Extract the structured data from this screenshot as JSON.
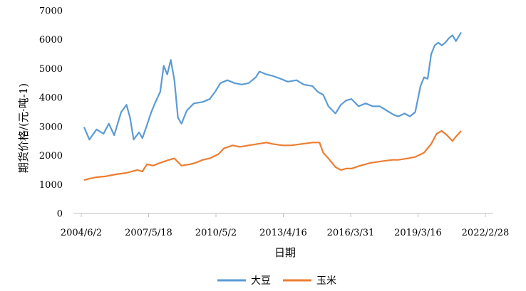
{
  "chart_data": {
    "type": "line",
    "title": "",
    "xlabel": "日期",
    "ylabel": "期货价格/(元·吨-1)",
    "ylim": [
      0,
      7000
    ],
    "yticks": [
      0,
      1000,
      2000,
      3000,
      4000,
      5000,
      6000,
      7000
    ],
    "x_tick_labels": [
      "2004/6/2",
      "2007/5/18",
      "2010/5/2",
      "2013/4/16",
      "2016/3/31",
      "2019/3/16",
      "2022/2/28"
    ],
    "xlim": [
      "2004/6/2",
      "2022/2/28"
    ],
    "grid": false,
    "legend_position": "bottom",
    "series": [
      {
        "name": "大豆",
        "color": "#5B9BD5",
        "points": [
          [
            "2004/6/2",
            2980
          ],
          [
            "2004/9/1",
            2550
          ],
          [
            "2005/1/1",
            2900
          ],
          [
            "2005/5/1",
            2750
          ],
          [
            "2005/8/1",
            3100
          ],
          [
            "2005/11/1",
            2700
          ],
          [
            "2006/3/1",
            3500
          ],
          [
            "2006/6/1",
            3750
          ],
          [
            "2006/8/1",
            3300
          ],
          [
            "2006/10/1",
            2550
          ],
          [
            "2007/1/1",
            2800
          ],
          [
            "2007/3/1",
            2600
          ],
          [
            "2007/5/18",
            3050
          ],
          [
            "2007/8/1",
            3500
          ],
          [
            "2007/10/1",
            3800
          ],
          [
            "2008/1/1",
            4200
          ],
          [
            "2008/3/1",
            5100
          ],
          [
            "2008/5/1",
            4800
          ],
          [
            "2008/7/1",
            5300
          ],
          [
            "2008/9/1",
            4600
          ],
          [
            "2008/11/1",
            3300
          ],
          [
            "2009/1/1",
            3100
          ],
          [
            "2009/4/1",
            3550
          ],
          [
            "2009/8/1",
            3800
          ],
          [
            "2010/1/1",
            3850
          ],
          [
            "2010/5/2",
            3950
          ],
          [
            "2010/8/1",
            4200
          ],
          [
            "2010/11/1",
            4500
          ],
          [
            "2011/3/1",
            4600
          ],
          [
            "2011/7/1",
            4500
          ],
          [
            "2011/11/1",
            4450
          ],
          [
            "2012/3/1",
            4500
          ],
          [
            "2012/7/1",
            4700
          ],
          [
            "2012/9/1",
            4900
          ],
          [
            "2013/1/1",
            4800
          ],
          [
            "2013/4/16",
            4750
          ],
          [
            "2013/9/1",
            4650
          ],
          [
            "2014/1/1",
            4550
          ],
          [
            "2014/6/1",
            4600
          ],
          [
            "2014/10/1",
            4450
          ],
          [
            "2015/3/1",
            4400
          ],
          [
            "2015/6/1",
            4200
          ],
          [
            "2015/9/1",
            4100
          ],
          [
            "2015/12/1",
            3700
          ],
          [
            "2016/3/31",
            3450
          ],
          [
            "2016/7/1",
            3750
          ],
          [
            "2016/10/1",
            3900
          ],
          [
            "2017/1/1",
            3950
          ],
          [
            "2017/5/1",
            3700
          ],
          [
            "2017/9/1",
            3800
          ],
          [
            "2018/1/1",
            3700
          ],
          [
            "2018/5/1",
            3700
          ],
          [
            "2018/9/1",
            3550
          ],
          [
            "2019/1/1",
            3400
          ],
          [
            "2019/3/16",
            3350
          ],
          [
            "2019/7/1",
            3450
          ],
          [
            "2019/10/1",
            3350
          ],
          [
            "2020/1/1",
            3500
          ],
          [
            "2020/4/1",
            4400
          ],
          [
            "2020/6/1",
            4700
          ],
          [
            "2020/8/1",
            4650
          ],
          [
            "2020/10/1",
            5500
          ],
          [
            "2020/12/1",
            5800
          ],
          [
            "2021/2/1",
            5900
          ],
          [
            "2021/4/1",
            5800
          ],
          [
            "2021/6/1",
            5900
          ],
          [
            "2021/8/1",
            6050
          ],
          [
            "2021/10/1",
            6150
          ],
          [
            "2021/12/1",
            5950
          ],
          [
            "2022/2/28",
            6250
          ]
        ]
      },
      {
        "name": "玉米",
        "color": "#ED7D31",
        "points": [
          [
            "2004/6/2",
            1150
          ],
          [
            "2004/9/1",
            1200
          ],
          [
            "2005/1/1",
            1250
          ],
          [
            "2005/6/1",
            1280
          ],
          [
            "2005/12/1",
            1350
          ],
          [
            "2006/6/1",
            1400
          ],
          [
            "2006/12/1",
            1500
          ],
          [
            "2007/3/1",
            1450
          ],
          [
            "2007/5/18",
            1700
          ],
          [
            "2007/9/1",
            1650
          ],
          [
            "2008/1/1",
            1750
          ],
          [
            "2008/6/1",
            1850
          ],
          [
            "2008/9/1",
            1900
          ],
          [
            "2009/1/1",
            1650
          ],
          [
            "2009/6/1",
            1700
          ],
          [
            "2009/9/1",
            1750
          ],
          [
            "2010/1/1",
            1850
          ],
          [
            "2010/5/2",
            1900
          ],
          [
            "2010/10/1",
            2050
          ],
          [
            "2011/1/1",
            2250
          ],
          [
            "2011/6/1",
            2350
          ],
          [
            "2011/10/1",
            2300
          ],
          [
            "2012/3/1",
            2350
          ],
          [
            "2012/8/1",
            2400
          ],
          [
            "2013/1/1",
            2450
          ],
          [
            "2013/4/16",
            2400
          ],
          [
            "2013/10/1",
            2350
          ],
          [
            "2014/3/1",
            2350
          ],
          [
            "2014/9/1",
            2400
          ],
          [
            "2015/3/1",
            2450
          ],
          [
            "2015/7/1",
            2450
          ],
          [
            "2015/9/1",
            2100
          ],
          [
            "2015/12/1",
            1900
          ],
          [
            "2016/3/31",
            1600
          ],
          [
            "2016/7/1",
            1500
          ],
          [
            "2016/10/1",
            1550
          ],
          [
            "2017/1/1",
            1550
          ],
          [
            "2017/6/1",
            1650
          ],
          [
            "2017/12/1",
            1750
          ],
          [
            "2018/6/1",
            1800
          ],
          [
            "2018/12/1",
            1850
          ],
          [
            "2019/3/16",
            1850
          ],
          [
            "2019/9/1",
            1900
          ],
          [
            "2020/1/1",
            1950
          ],
          [
            "2020/6/1",
            2100
          ],
          [
            "2020/10/1",
            2400
          ],
          [
            "2021/1/1",
            2750
          ],
          [
            "2021/4/1",
            2850
          ],
          [
            "2021/7/1",
            2700
          ],
          [
            "2021/10/1",
            2500
          ],
          [
            "2021/12/1",
            2650
          ],
          [
            "2022/2/28",
            2850
          ]
        ]
      }
    ]
  }
}
